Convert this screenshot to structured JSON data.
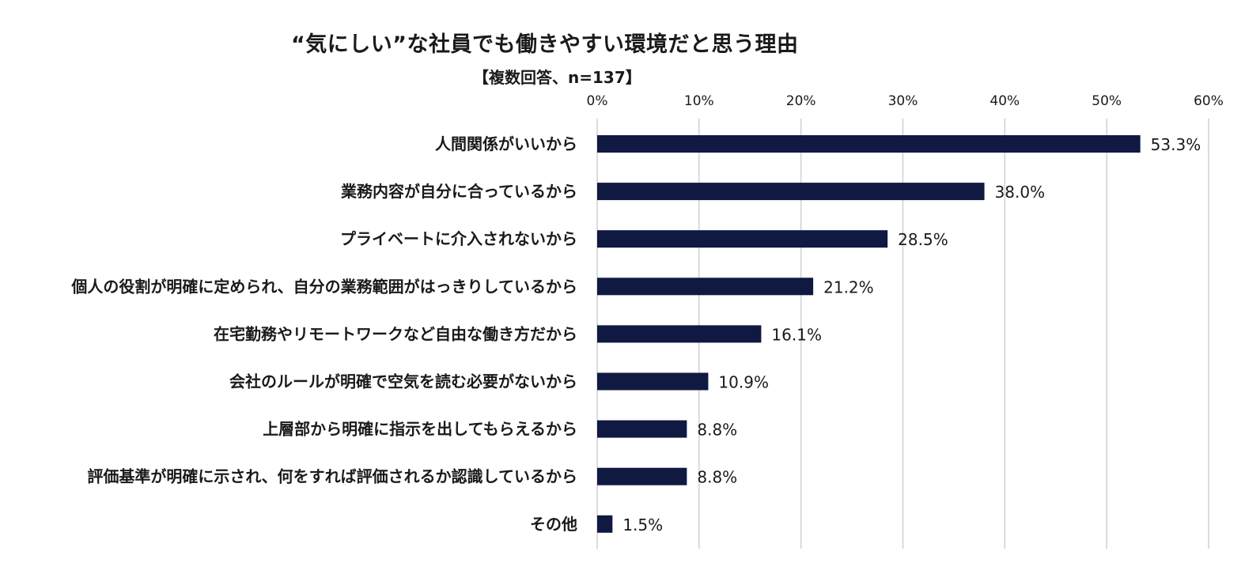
{
  "chart_data": {
    "type": "bar",
    "orientation": "horizontal",
    "title": "“気にしい”な社員でも働きやすい環境だと思う理由",
    "subtitle": "【複数回答、n=137】",
    "categories": [
      "人間関係がいいから",
      "業務内容が自分に合っているから",
      "プライベートに介入されないから",
      "個人の役割が明確に定められ、自分の業務範囲がはっきりしているから",
      "在宅勤務やリモートワークなど自由な働き方だから",
      "会社のルールが明確で空気を読む必要がないから",
      "上層部から明確に指示を出してもらえるから",
      "評価基準が明確に示され、何をすれば評価されるか認識しているから",
      "その他"
    ],
    "values": [
      53.3,
      38.0,
      28.5,
      21.2,
      16.1,
      10.9,
      8.8,
      8.8,
      1.5
    ],
    "data_labels": [
      "53.3%",
      "38.0%",
      "28.5%",
      "21.2%",
      "16.1%",
      "10.9%",
      "8.8%",
      "8.8%",
      "1.5%"
    ],
    "xlim": [
      0,
      60
    ],
    "x_ticks": [
      0,
      10,
      20,
      30,
      40,
      50,
      60
    ],
    "x_tick_labels": [
      "0%",
      "10%",
      "20%",
      "30%",
      "40%",
      "50%",
      "60%"
    ],
    "x_axis_position": "top",
    "grid": true,
    "legend": "none",
    "bar_color": "#0f1941",
    "grid_color": "#d0d0d0"
  }
}
